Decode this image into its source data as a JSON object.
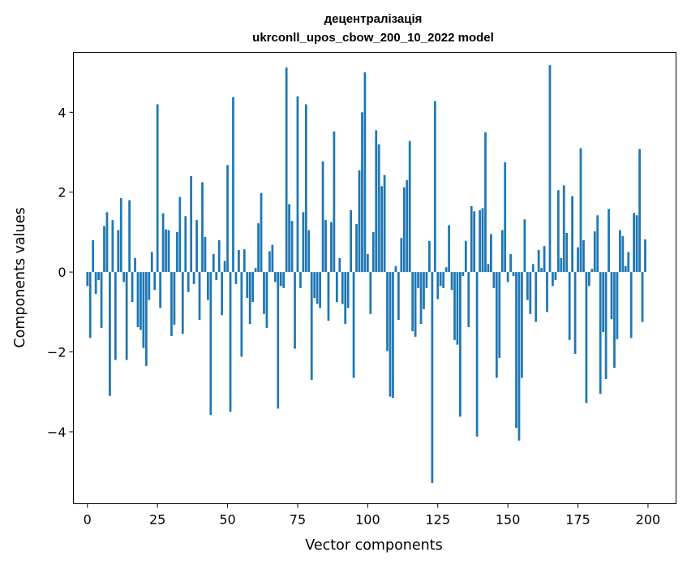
{
  "chart_data": {
    "type": "bar",
    "title": "децентралізація",
    "subtitle": "ukrconll_upos_cbow_200_10_2022 model",
    "xlabel": "Vector components",
    "ylabel": "Components values",
    "xlim": [
      -5,
      210
    ],
    "ylim": [
      -5.8,
      5.5
    ],
    "xticks": [
      0,
      25,
      50,
      75,
      100,
      125,
      150,
      175,
      200
    ],
    "yticks": [
      -4,
      -2,
      0,
      2,
      4
    ],
    "bar_color": "#1f77b4",
    "grid": false,
    "values": [
      -0.35,
      -1.65,
      0.8,
      -0.55,
      -0.2,
      -1.4,
      1.15,
      1.5,
      -3.1,
      1.3,
      -2.2,
      1.05,
      1.85,
      -0.25,
      -2.2,
      1.8,
      -0.75,
      0.35,
      -1.38,
      -1.45,
      -1.9,
      -2.35,
      -0.7,
      0.5,
      -0.45,
      4.2,
      -0.9,
      1.47,
      1.07,
      1.05,
      -1.6,
      -1.32,
      1.0,
      1.88,
      -1.55,
      1.4,
      -0.5,
      2.4,
      -0.3,
      1.3,
      -1.2,
      2.25,
      0.88,
      -0.7,
      -3.58,
      0.45,
      -0.2,
      0.8,
      -1.08,
      0.28,
      2.68,
      -3.5,
      4.38,
      -0.3,
      0.55,
      -2.12,
      0.57,
      -0.65,
      -1.3,
      -0.75,
      0.1,
      1.22,
      1.98,
      -1.05,
      -1.4,
      0.52,
      0.68,
      -0.25,
      -3.42,
      -0.35,
      -0.4,
      5.12,
      1.7,
      1.28,
      -1.92,
      4.4,
      -0.4,
      1.5,
      4.2,
      1.05,
      -2.7,
      -0.65,
      -0.8,
      -0.9,
      2.77,
      1.3,
      -1.22,
      1.25,
      3.52,
      -0.75,
      0.35,
      -0.8,
      -1.3,
      -0.9,
      1.55,
      -2.65,
      1.2,
      2.55,
      4.0,
      5.0,
      0.45,
      -1.05,
      1.0,
      3.55,
      3.2,
      2.15,
      2.43,
      -1.98,
      -3.12,
      -3.15,
      0.15,
      -1.2,
      0.85,
      2.12,
      2.3,
      3.28,
      -1.48,
      -1.62,
      -0.4,
      -1.3,
      -0.93,
      -0.4,
      0.78,
      -5.28,
      4.28,
      -0.68,
      -0.35,
      -0.4,
      0.12,
      1.17,
      -0.45,
      -1.7,
      -1.82,
      -3.62,
      -0.1,
      0.78,
      -1.38,
      1.65,
      1.52,
      -4.12,
      1.55,
      1.6,
      3.5,
      0.2,
      0.95,
      -0.4,
      -2.65,
      -2.15,
      1.05,
      2.75,
      -0.25,
      0.45,
      -0.1,
      -3.9,
      -4.22,
      -2.65,
      1.32,
      -0.7,
      -1.05,
      0.2,
      -1.25,
      0.55,
      0.1,
      0.65,
      -1.0,
      5.18,
      -0.35,
      -0.2,
      2.05,
      0.35,
      2.17,
      0.98,
      -1.7,
      1.9,
      -2.05,
      0.62,
      3.1,
      0.8,
      -3.28,
      -0.35,
      0.08,
      1.02,
      1.42,
      -3.05,
      -1.5,
      -2.68,
      1.58,
      -1.18,
      -2.4,
      -1.68,
      1.05,
      0.9,
      0.15,
      0.5,
      -1.65,
      1.48,
      1.42,
      3.08,
      -1.25,
      0.82
    ]
  }
}
